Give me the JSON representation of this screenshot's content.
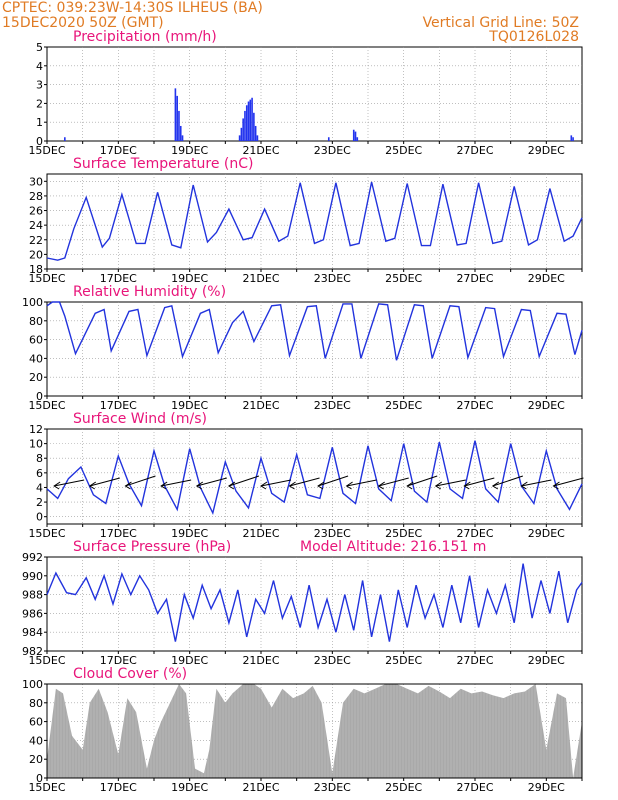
{
  "header": {
    "line1": "CPTEC:   039:23W-14:30S   ILHEUS (BA)",
    "line2": "15DEC2020 50Z (GMT)",
    "right1": "Vertical Grid Line: 50Z",
    "right2": "TQ0126L028",
    "model_altitude": "Model Altitude: 216.151  m"
  },
  "colors": {
    "header": "#e07b24",
    "title": "#e8157a",
    "line": "#2233dd",
    "bar": "#2233ee",
    "cloud": "#a9a9a9",
    "arrow": "#000000"
  },
  "x_tick_labels": [
    "15DEC",
    "17DEC",
    "19DEC",
    "21DEC",
    "23DEC",
    "25DEC",
    "27DEC",
    "29DEC"
  ],
  "chart_data": [
    {
      "type": "bar",
      "title": "Precipitation (mm/h)",
      "ylim": [
        0,
        5
      ],
      "yticks": [
        0,
        1,
        2,
        3,
        4,
        5
      ],
      "x": [
        0.5,
        3.6,
        3.65,
        3.7,
        3.75,
        3.8,
        5.4,
        5.45,
        5.5,
        5.55,
        5.6,
        5.65,
        5.7,
        5.75,
        5.8,
        5.85,
        5.9,
        7.9,
        8.6,
        8.65,
        8.7,
        14.7,
        14.75
      ],
      "values": [
        0.2,
        2.8,
        2.4,
        1.6,
        0.8,
        0.3,
        0.3,
        0.7,
        1.2,
        1.6,
        1.9,
        2.1,
        2.2,
        2.3,
        1.5,
        0.8,
        0.3,
        0.2,
        0.6,
        0.5,
        0.2,
        0.3,
        0.2
      ]
    },
    {
      "type": "line",
      "title": "Surface Temperature (nC)",
      "ylim": [
        18,
        31
      ],
      "yticks": [
        18,
        20,
        22,
        24,
        26,
        28,
        30
      ],
      "x": [
        0,
        0.3,
        0.5,
        0.75,
        1.1,
        1.55,
        1.75,
        2.1,
        2.5,
        2.75,
        3.1,
        3.5,
        3.75,
        4.1,
        4.5,
        4.75,
        5.1,
        5.5,
        5.75,
        6.1,
        6.5,
        6.75,
        7.1,
        7.5,
        7.75,
        8.1,
        8.5,
        8.75,
        9.1,
        9.5,
        9.75,
        10.1,
        10.5,
        10.75,
        11.1,
        11.5,
        11.75,
        12.1,
        12.5,
        12.75,
        13.1,
        13.5,
        13.75,
        14.1,
        14.5,
        14.75,
        15
      ],
      "y": [
        19.5,
        19.2,
        19.5,
        23.5,
        27.8,
        21.0,
        22.2,
        28.2,
        21.5,
        21.5,
        28.5,
        21.3,
        20.9,
        29.5,
        21.7,
        23.0,
        26.2,
        22.0,
        22.3,
        26.2,
        21.8,
        22.5,
        29.8,
        21.5,
        22.0,
        29.8,
        21.2,
        21.5,
        29.9,
        21.8,
        22.2,
        29.7,
        21.2,
        21.2,
        29.6,
        21.3,
        21.5,
        29.8,
        21.5,
        21.8,
        29.3,
        21.3,
        22.0,
        29.0,
        21.8,
        22.5,
        25.0
      ]
    },
    {
      "type": "line",
      "title": "Relative Humidity (%)",
      "ylim": [
        0,
        100
      ],
      "yticks": [
        0,
        20,
        40,
        60,
        80,
        100
      ],
      "x": [
        0,
        0.15,
        0.35,
        0.5,
        0.8,
        1.35,
        1.6,
        1.8,
        2.3,
        2.55,
        2.8,
        3.3,
        3.5,
        3.8,
        4.3,
        4.55,
        4.8,
        5.2,
        5.5,
        5.8,
        6.3,
        6.55,
        6.8,
        7.3,
        7.55,
        7.8,
        8.3,
        8.55,
        8.8,
        9.3,
        9.55,
        9.8,
        10.3,
        10.55,
        10.8,
        11.3,
        11.55,
        11.8,
        12.3,
        12.55,
        12.8,
        13.3,
        13.55,
        13.8,
        14.3,
        14.55,
        14.8,
        15
      ],
      "y": [
        96,
        100,
        100,
        85,
        45,
        88,
        92,
        48,
        90,
        92,
        43,
        94,
        96,
        42,
        88,
        92,
        46,
        78,
        90,
        58,
        96,
        97,
        43,
        95,
        96,
        40,
        98,
        98,
        40,
        98,
        97,
        38,
        97,
        96,
        40,
        96,
        95,
        41,
        94,
        93,
        42,
        92,
        91,
        42,
        88,
        87,
        44,
        70
      ]
    },
    {
      "type": "line",
      "title": "Surface Wind (m/s)",
      "ylim": [
        -1,
        12
      ],
      "yticks": [
        0,
        2,
        4,
        6,
        8,
        10,
        12
      ],
      "x": [
        0,
        0.3,
        0.6,
        0.95,
        1.3,
        1.65,
        2.0,
        2.3,
        2.65,
        3.0,
        3.3,
        3.65,
        4.0,
        4.3,
        4.65,
        5.0,
        5.3,
        5.65,
        6.0,
        6.3,
        6.65,
        7.0,
        7.3,
        7.65,
        8.0,
        8.3,
        8.65,
        9.0,
        9.3,
        9.65,
        10.0,
        10.3,
        10.65,
        11.0,
        11.3,
        11.65,
        12.0,
        12.3,
        12.65,
        13.0,
        13.3,
        13.65,
        14.0,
        14.3,
        14.65,
        15
      ],
      "y": [
        3.8,
        2.5,
        5.2,
        6.8,
        3.0,
        1.8,
        8.3,
        4.5,
        1.5,
        9.0,
        4.2,
        1.0,
        9.3,
        4.0,
        0.5,
        7.5,
        3.5,
        1.2,
        8.0,
        3.2,
        2.0,
        8.5,
        3.0,
        2.5,
        9.5,
        3.2,
        1.8,
        9.7,
        3.8,
        2.2,
        10.0,
        3.5,
        2.0,
        10.2,
        3.8,
        2.5,
        10.4,
        3.8,
        2.0,
        10.0,
        4.2,
        1.8,
        9.0,
        3.8,
        1.0,
        4.5
      ]
    },
    {
      "type": "line",
      "title": "Surface Pressure (hPa)",
      "ylim": [
        982,
        992
      ],
      "yticks": [
        982,
        984,
        986,
        988,
        990,
        992
      ],
      "x": [
        0,
        0.25,
        0.55,
        0.8,
        1.1,
        1.35,
        1.6,
        1.85,
        2.1,
        2.35,
        2.6,
        2.85,
        3.1,
        3.35,
        3.6,
        3.85,
        4.1,
        4.35,
        4.6,
        4.85,
        5.1,
        5.35,
        5.6,
        5.85,
        6.1,
        6.35,
        6.6,
        6.85,
        7.1,
        7.35,
        7.6,
        7.85,
        8.1,
        8.35,
        8.6,
        8.85,
        9.1,
        9.35,
        9.6,
        9.85,
        10.1,
        10.35,
        10.6,
        10.85,
        11.1,
        11.35,
        11.6,
        11.85,
        12.1,
        12.35,
        12.6,
        12.85,
        13.1,
        13.35,
        13.6,
        13.85,
        14.1,
        14.35,
        14.6,
        14.85,
        15
      ],
      "y": [
        988.0,
        990.3,
        988.2,
        988.0,
        989.8,
        987.5,
        990.0,
        987.0,
        990.2,
        988.0,
        990.0,
        988.5,
        986.0,
        987.5,
        983.0,
        988.0,
        985.5,
        989.0,
        986.5,
        988.5,
        985.0,
        988.5,
        983.5,
        987.5,
        986.0,
        989.5,
        985.5,
        987.8,
        984.5,
        989.0,
        984.5,
        987.5,
        984.0,
        988.0,
        984.2,
        989.5,
        983.5,
        988.0,
        983.0,
        988.5,
        984.5,
        989.0,
        985.5,
        988.0,
        984.5,
        989.0,
        985.0,
        990.0,
        984.5,
        988.5,
        986.0,
        989.0,
        985.0,
        991.3,
        985.5,
        989.5,
        986.0,
        990.5,
        985.0,
        988.5,
        989.3
      ]
    },
    {
      "type": "area",
      "title": "Cloud Cover (%)",
      "ylim": [
        0,
        100
      ],
      "yticks": [
        0,
        20,
        40,
        60,
        80,
        100
      ],
      "x": [
        0,
        0.25,
        0.45,
        0.7,
        1.0,
        1.2,
        1.45,
        1.7,
        2.0,
        2.25,
        2.5,
        2.8,
        3.0,
        3.2,
        3.45,
        3.7,
        3.9,
        4.15,
        4.4,
        4.55,
        4.75,
        5.0,
        5.2,
        5.5,
        5.8,
        6.0,
        6.3,
        6.6,
        6.9,
        7.2,
        7.45,
        7.7,
        8.0,
        8.3,
        8.6,
        8.9,
        9.2,
        9.5,
        9.8,
        10.1,
        10.4,
        10.7,
        11.0,
        11.3,
        11.6,
        11.9,
        12.2,
        12.5,
        12.8,
        13.1,
        13.4,
        13.7,
        14.0,
        14.3,
        14.55,
        14.75,
        15
      ],
      "y": [
        20,
        95,
        90,
        45,
        30,
        80,
        95,
        70,
        25,
        85,
        70,
        10,
        40,
        60,
        80,
        100,
        90,
        10,
        5,
        30,
        95,
        80,
        90,
        100,
        100,
        95,
        75,
        95,
        85,
        90,
        98,
        80,
        5,
        80,
        95,
        90,
        95,
        100,
        100,
        95,
        90,
        98,
        92,
        85,
        95,
        90,
        92,
        88,
        85,
        90,
        92,
        100,
        30,
        90,
        85,
        0,
        60
      ]
    }
  ]
}
